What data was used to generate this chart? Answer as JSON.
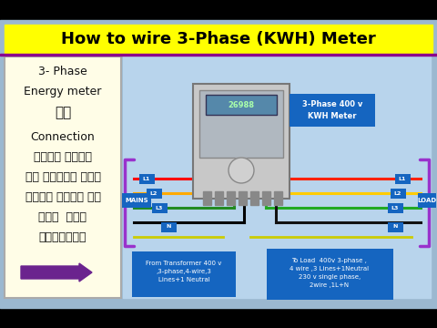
{
  "title": "How to wire 3-Phase (KWH) Meter",
  "title_bg": "#FFFF00",
  "title_color": "#000000",
  "outer_bg": "#000000",
  "diag_bg_top": "#C8DCF0",
  "diag_bg_bottom": "#A8C8E8",
  "left_panel_bg": "#FFFACD",
  "left_panel_text": "3- Phase\nEnergy meter\nका\n\nConnection\nइतना आसान\nहै मैंने कभी\nसोचा नहीं था\nकभी  नही\nभूलेंगे",
  "arrow_color": "#6B238E",
  "mains_label": "MAINS",
  "load_label": "LOAD",
  "meter_label": "3-Phase 400 v\nKWH Meter",
  "meter_label_bg": "#1565C0",
  "from_label": "From Transformer 400 v\n,3-phase,4-wire,3\nLines+1 Neutral",
  "to_label": "To Load  400v 3-phase ,\n4 wire ,3 Lines+1Neutral\n230 v single phase,\n2wire ,1L+N",
  "label_bg": "#1565C0",
  "wire_colors_in": [
    "#FF0000",
    "#FFAA00",
    "#228B22",
    "#000000"
  ],
  "wire_colors_out": [
    "#FF0000",
    "#FFAA00",
    "#228B22",
    "#000000"
  ],
  "bracket_color": "#9932CC",
  "yellow_ground_color": "#DDDD00"
}
